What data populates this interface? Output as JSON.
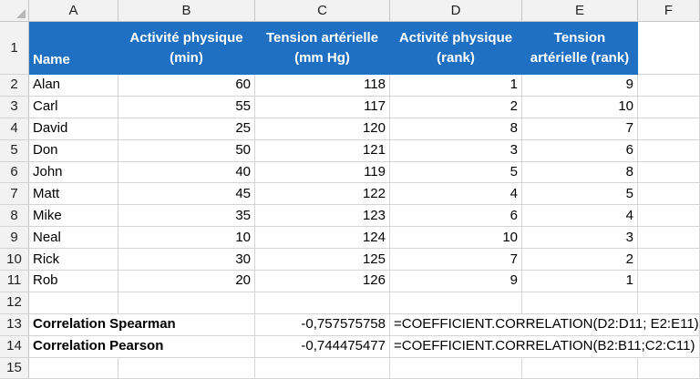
{
  "columns": [
    "A",
    "B",
    "C",
    "D",
    "E",
    "F"
  ],
  "row_numbers": [
    "1",
    "2",
    "3",
    "4",
    "5",
    "6",
    "7",
    "8",
    "9",
    "10",
    "11",
    "12",
    "13",
    "14",
    "15"
  ],
  "headers": {
    "name": "Name",
    "activity": "Activité physique (min)",
    "tension": "Tension artérielle (mm Hg)",
    "activity_rank": "Activité physique (rank)",
    "tension_rank": "Tension artérielle (rank)"
  },
  "rows": [
    {
      "name": "Alan",
      "activity": "60",
      "tension": "118",
      "activity_rank": "1",
      "tension_rank": "9"
    },
    {
      "name": "Carl",
      "activity": "55",
      "tension": "117",
      "activity_rank": "2",
      "tension_rank": "10"
    },
    {
      "name": "David",
      "activity": "25",
      "tension": "120",
      "activity_rank": "8",
      "tension_rank": "7"
    },
    {
      "name": "Don",
      "activity": "50",
      "tension": "121",
      "activity_rank": "3",
      "tension_rank": "6"
    },
    {
      "name": "John",
      "activity": "40",
      "tension": "119",
      "activity_rank": "5",
      "tension_rank": "8"
    },
    {
      "name": "Matt",
      "activity": "45",
      "tension": "122",
      "activity_rank": "4",
      "tension_rank": "5"
    },
    {
      "name": "Mike",
      "activity": "35",
      "tension": "123",
      "activity_rank": "6",
      "tension_rank": "4"
    },
    {
      "name": "Neal",
      "activity": "10",
      "tension": "124",
      "activity_rank": "10",
      "tension_rank": "3"
    },
    {
      "name": "Rick",
      "activity": "30",
      "tension": "125",
      "activity_rank": "7",
      "tension_rank": "2"
    },
    {
      "name": "Rob",
      "activity": "20",
      "tension": "126",
      "activity_rank": "9",
      "tension_rank": "1"
    }
  ],
  "results": [
    {
      "label": "Correlation Spearman",
      "value": "-0,757575758",
      "formula": "=COEFFICIENT.CORRELATION(D2:D11; E2:E11)"
    },
    {
      "label": "Correlation Pearson",
      "value": "-0,744475477",
      "formula": "=COEFFICIENT.CORRELATION(B2:B11;C2:C11)"
    }
  ],
  "colors": {
    "header_fill": "#1f6fc2",
    "header_text": "#ffffff",
    "gridline": "#d4d4d4"
  }
}
